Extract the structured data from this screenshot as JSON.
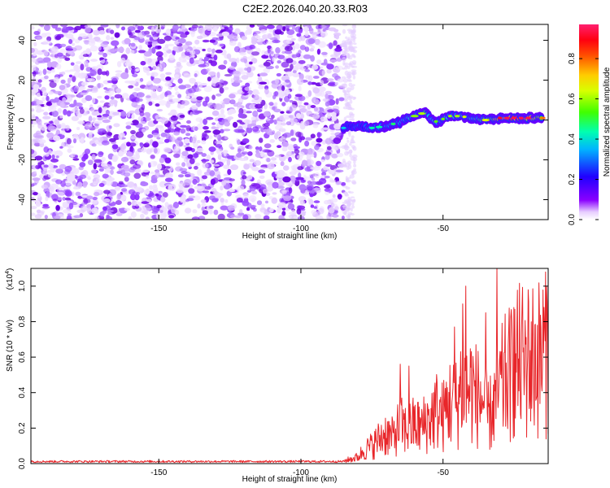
{
  "title": "C2E2.2026.040.20.33.R03",
  "colors": {
    "snr_line": "#e8262a",
    "axis": "#000000",
    "colormap": [
      "#ffffff",
      "#8a00ff",
      "#2000ff",
      "#00b4ff",
      "#00ff80",
      "#40ff00",
      "#ffff00",
      "#ff8000",
      "#ff0000",
      "#ff1a60"
    ]
  },
  "chart_data": [
    {
      "type": "heatmap",
      "title": "C2E2.2026.040.20.33.R03",
      "xlabel": "Height of straight line (km)",
      "ylabel": "Frequency (Hz)",
      "xlim": [
        -195,
        -13
      ],
      "ylim": [
        -50,
        48
      ],
      "xticks": [
        -150,
        -100,
        -50
      ],
      "xtick_labels": [
        "-150",
        "-100",
        "-50"
      ],
      "yticks": [
        -40,
        -20,
        0,
        20,
        40
      ],
      "ytick_labels": [
        "-40",
        "-20",
        "0",
        "20",
        "40"
      ],
      "noise_region_x": [
        -195,
        -85
      ],
      "signal_trace": {
        "x": [
          -85,
          -80,
          -75,
          -70,
          -65,
          -60,
          -56,
          -54,
          -52,
          -48,
          -44,
          -40,
          -35,
          -30,
          -25,
          -20,
          -15
        ],
        "freq_hz": [
          -4,
          -3,
          -4,
          -3,
          -1,
          2,
          4,
          0,
          -1,
          2,
          2,
          1,
          0,
          1,
          1,
          1,
          1
        ],
        "amplitude": [
          0.25,
          0.3,
          0.35,
          0.35,
          0.4,
          0.45,
          0.5,
          0.4,
          0.45,
          0.45,
          0.5,
          0.45,
          0.5,
          0.75,
          0.85,
          0.85,
          0.7
        ]
      },
      "colorbar": {
        "label": "Normalized spectral amplitude",
        "range": [
          0,
          0.97
        ],
        "ticks": [
          0.0,
          0.2,
          0.4,
          0.6,
          0.8
        ],
        "tick_labels": [
          "0.0",
          "0.2",
          "0.4",
          "0.6",
          "0.8"
        ]
      }
    },
    {
      "type": "line",
      "xlabel": "Height of straight line (km)",
      "ylabel": "SNR (10 * v/v)",
      "y_multiplier_label": "(x10",
      "y_multiplier_exponent": "4",
      "y_multiplier_close": ")",
      "xlim": [
        -195,
        -13
      ],
      "ylim": [
        0,
        1.1
      ],
      "xticks": [
        -150,
        -100,
        -50
      ],
      "xtick_labels": [
        "-150",
        "-100",
        "-50"
      ],
      "yticks": [
        0,
        0.2,
        0.4,
        0.6,
        0.8,
        1.0
      ],
      "ytick_labels": [
        "0.0",
        "0.2",
        "0.4",
        "0.6",
        "0.8",
        "1.0"
      ],
      "series": [
        {
          "name": "SNR",
          "x": [
            -195,
            -180,
            -160,
            -140,
            -120,
            -100,
            -90,
            -85,
            -80,
            -78,
            -75,
            -72,
            -70,
            -68,
            -65,
            -63,
            -60,
            -58,
            -55,
            -52,
            -50,
            -48,
            -45,
            -43,
            -42,
            -40,
            -38,
            -36,
            -34,
            -32,
            -30,
            -28,
            -26,
            -24,
            -22,
            -20,
            -18,
            -16,
            -14,
            -13
          ],
          "y": [
            0.01,
            0.01,
            0.01,
            0.01,
            0.01,
            0.01,
            0.01,
            0.02,
            0.05,
            0.1,
            0.14,
            0.2,
            0.24,
            0.2,
            0.3,
            0.26,
            0.3,
            0.28,
            0.34,
            0.42,
            0.36,
            0.48,
            0.46,
            0.68,
            0.55,
            0.6,
            0.52,
            0.5,
            0.36,
            0.46,
            0.58,
            0.66,
            0.7,
            0.78,
            0.8,
            0.74,
            0.84,
            0.82,
            0.9,
            0.92
          ],
          "peaks": [
            {
              "x": -65,
              "y": 0.56
            },
            {
              "x": -62,
              "y": 0.55
            },
            {
              "x": -46,
              "y": 0.77
            },
            {
              "x": -43,
              "y": 0.9
            },
            {
              "x": -42,
              "y": 1.0
            },
            {
              "x": -35,
              "y": 0.85
            },
            {
              "x": -31,
              "y": 1.1
            },
            {
              "x": -25,
              "y": 0.88
            },
            {
              "x": -20,
              "y": 0.98
            },
            {
              "x": -14,
              "y": 1.08
            }
          ]
        }
      ]
    }
  ]
}
